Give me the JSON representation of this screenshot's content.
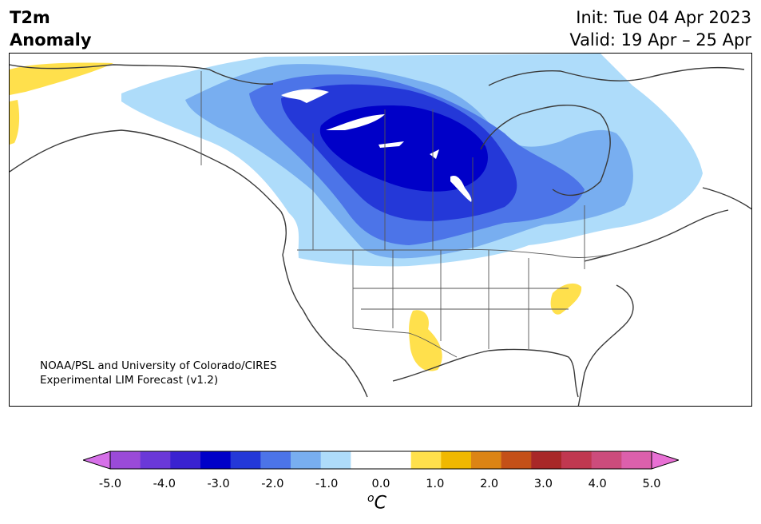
{
  "title": {
    "line1": "T2m",
    "line2": "Anomaly"
  },
  "init": "Init: Tue 04 Apr 2023",
  "valid": "Valid: 19 Apr – 25 Apr",
  "credit": {
    "line1": "NOAA/PSL and University of Colorado/CIRES",
    "line2": "Experimental LIM Forecast (v1.2)"
  },
  "colorbar": {
    "colors": [
      "#d670e8",
      "#9a4ad8",
      "#6a38d8",
      "#3a22d0",
      "#0000c8",
      "#2438d8",
      "#4c74e8",
      "#78aef0",
      "#aedcfa",
      "#ffffff",
      "#ffffff",
      "#ffe04c",
      "#f0b800",
      "#dc8414",
      "#c45018",
      "#a82828",
      "#c03850",
      "#cc4c7c",
      "#dc60ac",
      "#e870d4"
    ],
    "ticks": [
      "-5.0",
      "-4.0",
      "-3.0",
      "-2.0",
      "-1.0",
      "0.0",
      "1.0",
      "2.0",
      "3.0",
      "4.0",
      "5.0"
    ],
    "unit_sup": "o",
    "unit": "C"
  },
  "map": {
    "region": "North America",
    "anomaly_palette": {
      "cold_max": "#0000c8",
      "cold_strong": "#2438d8",
      "cold_mid": "#4c74e8",
      "cold_light": "#78aef0",
      "cold_weak": "#aedcfa",
      "warm_weak": "#ffe04c"
    }
  }
}
